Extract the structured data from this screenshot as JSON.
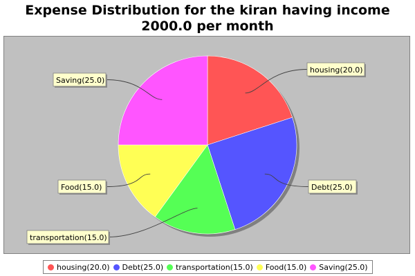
{
  "chart_data": {
    "type": "pie",
    "title": "Expense Distribution for the kiran having income 2000.0 per month",
    "slices": [
      {
        "name": "housing",
        "value": 20.0,
        "label": "housing(20.0)",
        "color": "#ff5555"
      },
      {
        "name": "Debt",
        "value": 25.0,
        "label": "Debt(25.0)",
        "color": "#5555ff"
      },
      {
        "name": "transportation",
        "value": 15.0,
        "label": "transportation(15.0)",
        "color": "#55ff55"
      },
      {
        "name": "Food",
        "value": 15.0,
        "label": "Food(15.0)",
        "color": "#ffff55"
      },
      {
        "name": "Saving",
        "value": 25.0,
        "label": "Saving(25.0)",
        "color": "#ff55ff"
      }
    ],
    "legend_position": "bottom",
    "start_angle": "top",
    "direction": "clockwise"
  },
  "colors": {
    "plot_background": "#c0c0c0",
    "label_background": "#ffffcc"
  }
}
